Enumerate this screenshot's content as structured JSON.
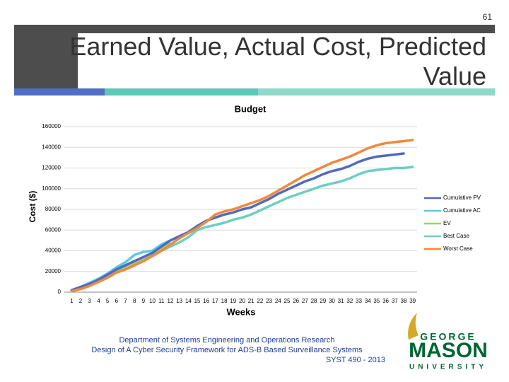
{
  "slide": {
    "number": "61",
    "title": "Earned Value, Actual Cost, Predicted Value",
    "footer": [
      "Department of Systems Engineering and Operations Research",
      "Design of A Cyber Security Framework for ADS-B Based Surveillance Systems",
      "SYST 490 - 2013"
    ],
    "logo": {
      "top": "GEORGE",
      "main": "MASON",
      "bottom": "UNIVERSITY"
    }
  },
  "chart_data": {
    "type": "line",
    "title": "Budget",
    "x_label": "Weeks",
    "y_label": "Cost ($)",
    "categories": [
      "1",
      "2",
      "3",
      "4",
      "5",
      "6",
      "7",
      "8",
      "9",
      "10",
      "11",
      "12",
      "13",
      "14",
      "15",
      "16",
      "17",
      "18",
      "19",
      "20",
      "21",
      "22",
      "23",
      "24",
      "25",
      "26",
      "27",
      "28",
      "29",
      "30",
      "31",
      "32",
      "33",
      "34",
      "35",
      "36",
      "37",
      "38",
      "39"
    ],
    "ylim": [
      0,
      160000
    ],
    "yticks": [
      0,
      20000,
      40000,
      60000,
      80000,
      100000,
      120000,
      140000,
      160000
    ],
    "grid": true,
    "legend": "right",
    "series": [
      {
        "name": "Cumulative PV",
        "color": "#4f6bbf",
        "values": [
          2000,
          5000,
          8000,
          12000,
          17000,
          22000,
          26000,
          30000,
          34000,
          38000,
          44000,
          50000,
          54000,
          58000,
          64000,
          69000,
          72000,
          75000,
          77000,
          80000,
          82000,
          86000,
          90000,
          95000,
          99000,
          103000,
          107000,
          110000,
          114000,
          117000,
          119000,
          122000,
          126000,
          129000,
          131000,
          132000,
          133000,
          134000,
          null
        ]
      },
      {
        "name": "Cumulative AC",
        "color": "#5bc8e6",
        "values": [
          2000,
          5000,
          9000,
          13000,
          18000,
          24000,
          29000,
          36000,
          39000,
          40000,
          46000,
          50000,
          null,
          null,
          null,
          null,
          null,
          null,
          null,
          null,
          null,
          null,
          null,
          null,
          null,
          null,
          null,
          null,
          null,
          null,
          null,
          null,
          null,
          null,
          null,
          null,
          null,
          null,
          null
        ]
      },
      {
        "name": "EV",
        "color": "#9bd46a",
        "values": [
          1500,
          4000,
          7000,
          11000,
          15000,
          20000,
          24000,
          28000,
          32000,
          36000,
          42000,
          47000,
          null,
          null,
          null,
          null,
          null,
          null,
          null,
          null,
          null,
          null,
          null,
          null,
          null,
          null,
          null,
          null,
          null,
          null,
          null,
          null,
          null,
          null,
          null,
          null,
          null,
          null,
          null
        ]
      },
      {
        "name": "Best Case",
        "color": "#6ccfc0",
        "values": [
          1000,
          3000,
          6000,
          10000,
          14000,
          19000,
          22000,
          26000,
          30000,
          35000,
          40000,
          44000,
          48000,
          53000,
          60000,
          63000,
          65000,
          67000,
          70000,
          72000,
          75000,
          79000,
          83000,
          87000,
          91000,
          94000,
          97000,
          100000,
          103000,
          105000,
          107000,
          110000,
          114000,
          117000,
          118000,
          119000,
          120000,
          120000,
          121000
        ]
      },
      {
        "name": "Worst Case",
        "color": "#f0883e",
        "values": [
          1000,
          3000,
          6000,
          10000,
          14000,
          19000,
          22000,
          26000,
          30000,
          35000,
          40000,
          46000,
          52000,
          57000,
          62000,
          68000,
          75000,
          78000,
          80000,
          83000,
          86000,
          89000,
          93000,
          98000,
          103000,
          108000,
          113000,
          117000,
          121000,
          125000,
          128000,
          131000,
          135000,
          139000,
          142000,
          144000,
          145000,
          146000,
          147000
        ]
      }
    ]
  }
}
